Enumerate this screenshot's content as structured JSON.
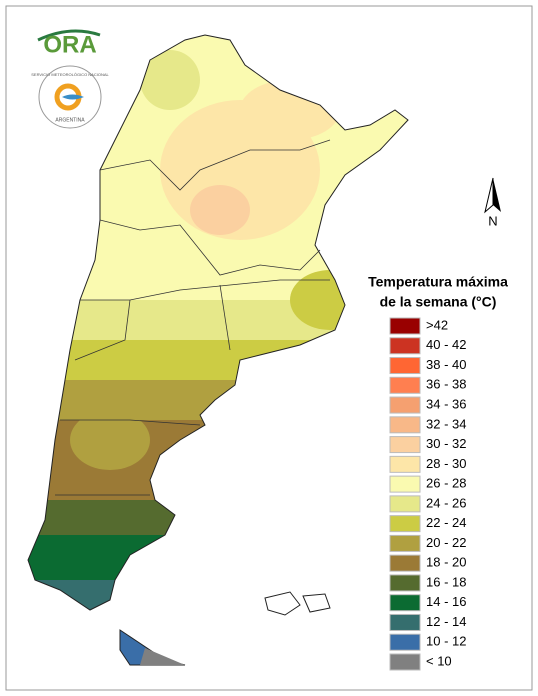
{
  "logo": {
    "name": "ORA",
    "agency": "SERVICIO METEOROLÓGICO NACIONAL",
    "country": "ARGENTINA"
  },
  "compass": "N",
  "legend": {
    "title": [
      "Temperatura máxima",
      "de la semana (°C)"
    ],
    "items": [
      {
        "label": ">42",
        "color": "#990000"
      },
      {
        "label": "40 - 42",
        "color": "#cc3322"
      },
      {
        "label": "38 - 40",
        "color": "#ff6633"
      },
      {
        "label": "36 - 38",
        "color": "#ff7f50"
      },
      {
        "label": "34 - 36",
        "color": "#f5a070"
      },
      {
        "label": "32 - 34",
        "color": "#f8b888"
      },
      {
        "label": "30 - 32",
        "color": "#fbd0a0"
      },
      {
        "label": "28 - 30",
        "color": "#fde6a8"
      },
      {
        "label": "26 - 28",
        "color": "#fafab0"
      },
      {
        "label": "24 - 26",
        "color": "#e6e88a"
      },
      {
        "label": "22 - 24",
        "color": "#cccc44"
      },
      {
        "label": "20 - 22",
        "color": "#b0a040"
      },
      {
        "label": "18 - 20",
        "color": "#9b7a36"
      },
      {
        "label": "16 - 18",
        "color": "#556b2f"
      },
      {
        "label": "14 - 16",
        "color": "#0b6b32"
      },
      {
        "label": "12 - 14",
        "color": "#356e6e"
      },
      {
        "label": "10 - 12",
        "color": "#3a6ea8"
      },
      {
        "label": "< 10",
        "color": "#808080"
      }
    ]
  }
}
